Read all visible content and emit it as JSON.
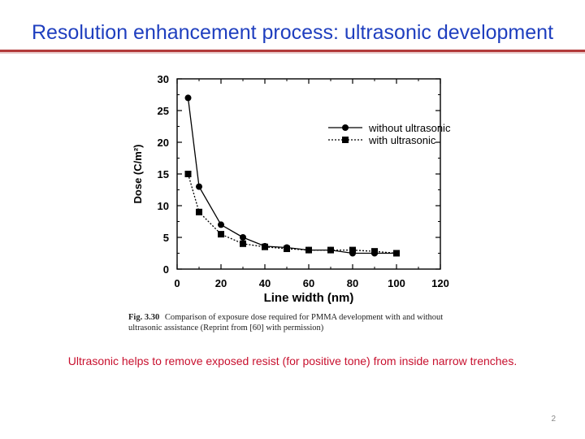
{
  "slide": {
    "title": "Resolution enhancement process: ultrasonic development",
    "note": "Ultrasonic helps to remove exposed resist (for positive tone) from inside narrow trenches.",
    "page_number": "2",
    "colors": {
      "title": "#1f3fbf",
      "rule": "#b23a3a",
      "note": "#c8102e"
    }
  },
  "caption": {
    "label": "Fig. 3.30",
    "text": "Comparison of exposure dose required for PMMA development with and without ultrasonic assistance (Reprint from [60] with permission)"
  },
  "chart_data": {
    "type": "line",
    "xlabel": "Line width (nm)",
    "ylabel": "Dose (C/m²)",
    "xlim": [
      0,
      120
    ],
    "ylim": [
      0,
      30
    ],
    "xticks": [
      0,
      20,
      40,
      60,
      80,
      100,
      120
    ],
    "yticks": [
      0,
      5,
      10,
      15,
      20,
      25,
      30
    ],
    "grid": false,
    "legend_position": "top-right",
    "series": [
      {
        "name": "without ultrasonic",
        "marker": "circle",
        "line_style": "solid",
        "points": [
          [
            5,
            27
          ],
          [
            10,
            13
          ],
          [
            20,
            7
          ],
          [
            30,
            5
          ],
          [
            40,
            3.6
          ],
          [
            50,
            3.4
          ],
          [
            60,
            3
          ],
          [
            70,
            3
          ],
          [
            80,
            2.5
          ],
          [
            90,
            2.5
          ],
          [
            100,
            2.5
          ]
        ]
      },
      {
        "name": "with ultrasonic",
        "marker": "square",
        "line_style": "dotted",
        "points": [
          [
            5,
            15
          ],
          [
            10,
            9
          ],
          [
            20,
            5.5
          ],
          [
            30,
            4
          ],
          [
            40,
            3.5
          ],
          [
            50,
            3.2
          ],
          [
            60,
            3
          ],
          [
            70,
            3
          ],
          [
            80,
            3
          ],
          [
            90,
            2.8
          ],
          [
            100,
            2.5
          ]
        ]
      }
    ]
  }
}
